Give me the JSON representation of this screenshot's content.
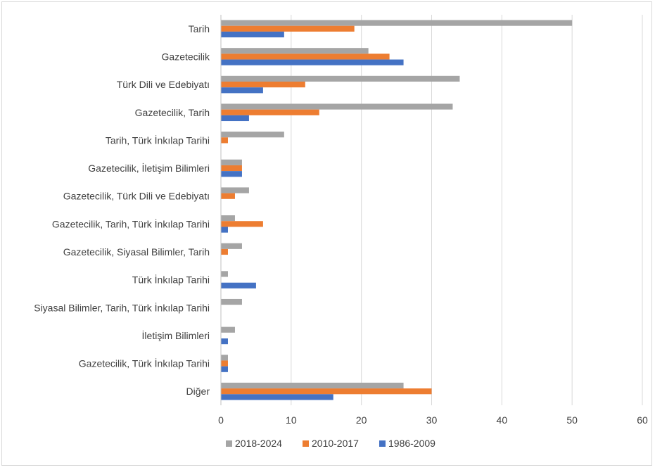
{
  "chart_data": {
    "type": "bar",
    "orientation": "horizontal",
    "title": "",
    "xlabel": "",
    "ylabel": "",
    "categories": [
      "Tarih",
      "Gazetecilik",
      "Türk Dili ve Edebiyatı",
      "Gazetecilik, Tarih",
      "Tarih, Türk İnkılap Tarihi",
      "Gazetecilik, İletişim Bilimleri",
      "Gazetecilik, Türk Dili ve Edebiyatı",
      "Gazetecilik, Tarih, Türk İnkılap Tarihi",
      "Gazetecilik, Siyasal Bilimler, Tarih",
      "Türk İnkılap Tarihi",
      "Siyasal Bilimler, Tarih, Türk İnkılap Tarihi",
      "İletişim Bilimleri",
      "Gazetecilik, Türk İnkılap Tarihi",
      "Diğer"
    ],
    "series": [
      {
        "name": "2018-2024",
        "color": "#a5a5a5",
        "values": [
          50,
          21,
          34,
          33,
          9,
          3,
          4,
          2,
          3,
          1,
          3,
          2,
          1,
          26
        ]
      },
      {
        "name": "2010-2017",
        "color": "#ed7d31",
        "values": [
          19,
          24,
          12,
          14,
          1,
          3,
          2,
          6,
          1,
          0,
          0,
          0,
          1,
          30
        ]
      },
      {
        "name": "1986-2009",
        "color": "#4472c4",
        "values": [
          9,
          26,
          6,
          4,
          0,
          3,
          0,
          1,
          0,
          5,
          0,
          1,
          1,
          16
        ]
      }
    ],
    "xlim": [
      0,
      60
    ],
    "xticks": [
      0,
      10,
      20,
      30,
      40,
      50,
      60
    ],
    "grid": true,
    "legend_position": "bottom"
  }
}
